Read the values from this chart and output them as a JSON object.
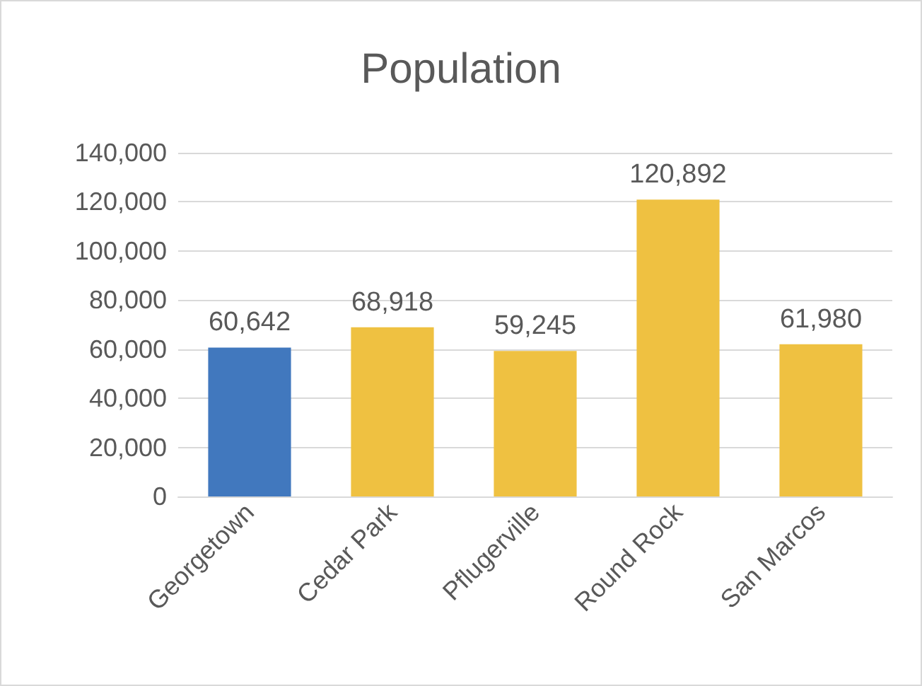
{
  "chart_data": {
    "type": "bar",
    "title": "Population",
    "categories": [
      "Georgetown",
      "Cedar Park",
      "Pflugerville",
      "Round Rock",
      "San Marcos"
    ],
    "values": [
      60642,
      68918,
      59245,
      120892,
      61980
    ],
    "value_labels": [
      "60,642",
      "68,918",
      "59,245",
      "120,892",
      "61,980"
    ],
    "colors": [
      "#4178be",
      "#efc141",
      "#efc141",
      "#efc141",
      "#efc141"
    ],
    "ylim": [
      0,
      140000
    ],
    "yticks": [
      0,
      {
        "value": 20000,
        "label": "20,000"
      },
      {
        "value": 40000,
        "label": "40,000"
      },
      {
        "value": 60000,
        "label": "60,000"
      },
      {
        "value": 80000,
        "label": "80,000"
      },
      {
        "value": 100000,
        "label": "100,000"
      },
      {
        "value": 120000,
        "label": "120,000"
      },
      {
        "value": 140000,
        "label": "140,000"
      }
    ],
    "grid": "y"
  }
}
